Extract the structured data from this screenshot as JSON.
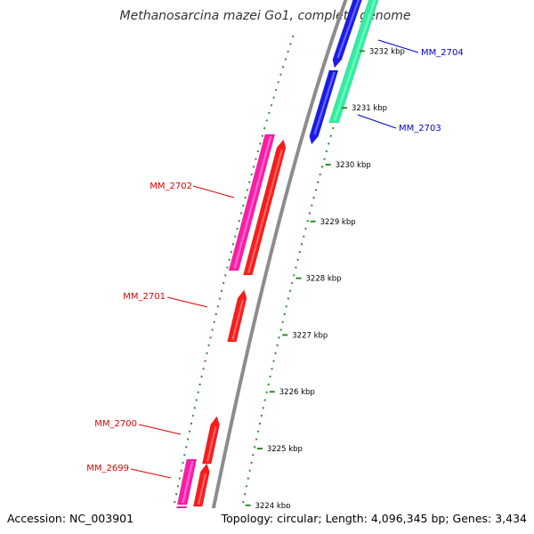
{
  "title": "Methanosarcina mazei Go1, complete genome",
  "footer": {
    "accession": "Accession: NC_003901",
    "summary": "Topology: circular; Length: 4,096,345 bp; Genes: 3,434"
  },
  "ruler": {
    "unit": "kbp",
    "ticks": [
      {
        "kbp": 3224,
        "label": "3224 kbp"
      },
      {
        "kbp": 3225,
        "label": "3225 kbp"
      },
      {
        "kbp": 3226,
        "label": "3226 kbp"
      },
      {
        "kbp": 3227,
        "label": "3227 kbp"
      },
      {
        "kbp": 3228,
        "label": "3228 kbp"
      },
      {
        "kbp": 3229,
        "label": "3229 kbp"
      },
      {
        "kbp": 3230,
        "label": "3230 kbp"
      },
      {
        "kbp": 3231,
        "label": "3231 kbp"
      },
      {
        "kbp": 3232,
        "label": "3232 kbp"
      }
    ]
  },
  "genes": [
    {
      "id": "MM_2704",
      "label": "MM_2704",
      "strand": "forward",
      "color": "#0000cc"
    },
    {
      "id": "MM_2703",
      "label": "MM_2703",
      "strand": "forward",
      "color": "#0000cc"
    },
    {
      "id": "MM_2702",
      "label": "MM_2702",
      "strand": "reverse",
      "color": "#dd0000"
    },
    {
      "id": "MM_2701",
      "label": "MM_2701",
      "strand": "reverse",
      "color": "#dd0000"
    },
    {
      "id": "MM_2700",
      "label": "MM_2700",
      "strand": "reverse",
      "color": "#dd0000"
    },
    {
      "id": "MM_2699",
      "label": "MM_2699",
      "strand": "reverse",
      "color": "#dd0000"
    }
  ],
  "colors": {
    "backbone": "#8c8c8c",
    "forward_cds": "#1a1aee",
    "forward_feature": "#2ef0a0",
    "reverse_cds": "#ff1a1a",
    "reverse_feature": "#ff1aa8",
    "dots": "#2e8b2e"
  }
}
